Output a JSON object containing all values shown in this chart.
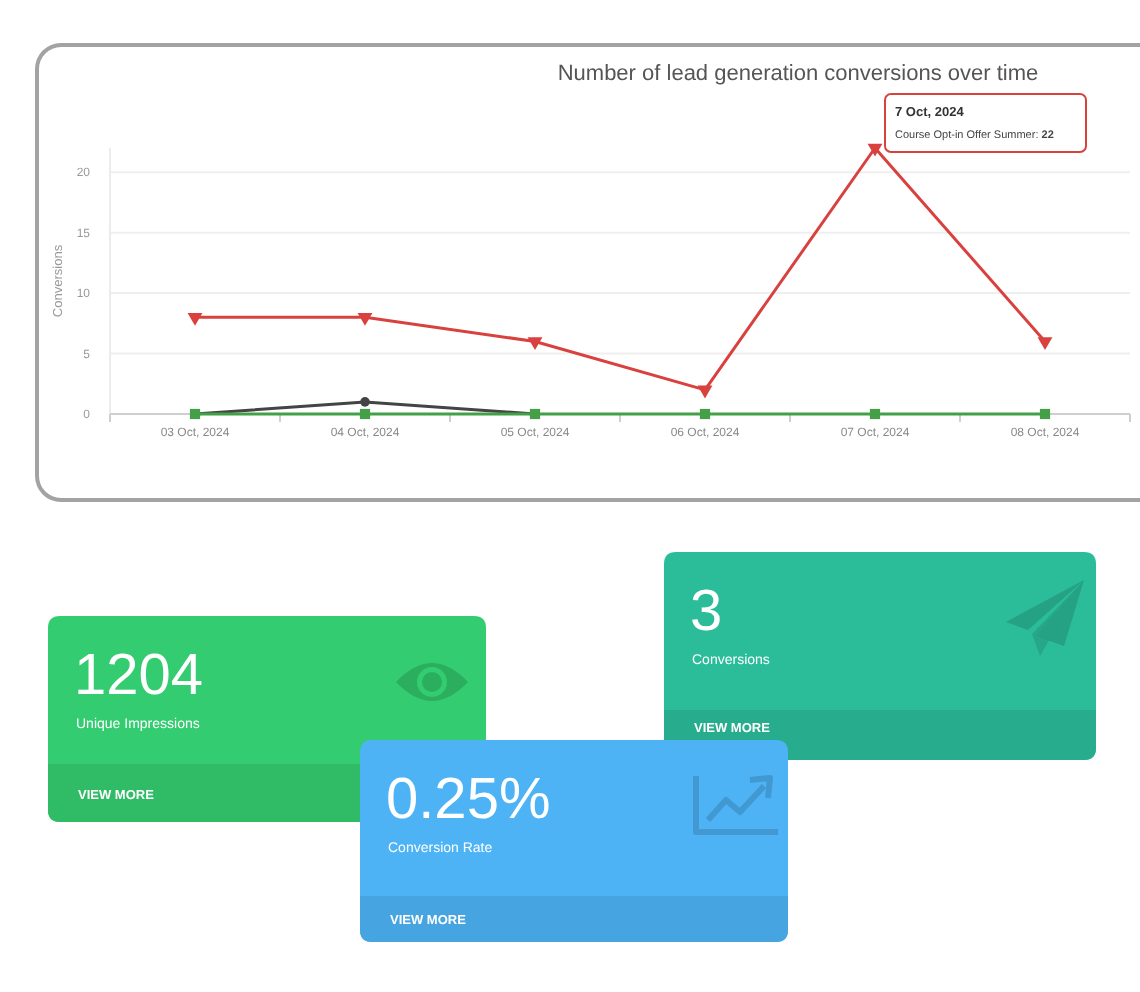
{
  "chart_data": [
    {
      "type": "line",
      "title": "Number of lead generation conversions over time",
      "ylabel": "Conversions",
      "categories": [
        "03 Oct, 2024",
        "04 Oct, 2024",
        "05 Oct, 2024",
        "06 Oct, 2024",
        "07 Oct, 2024",
        "08 Oct, 2024"
      ],
      "series": [
        {
          "color": "#d9413f",
          "marker": "triangle",
          "values": [
            8,
            8,
            6,
            2,
            22,
            6
          ]
        },
        {
          "color": "#444444",
          "marker": "circle",
          "values": [
            0,
            1,
            0,
            null,
            null,
            null
          ]
        },
        {
          "color": "#43a047",
          "marker": "square",
          "values": [
            0,
            0,
            0,
            0,
            0,
            0
          ]
        }
      ],
      "ylim": [
        0,
        22
      ],
      "yticks": [
        0,
        5,
        10,
        15,
        20
      ],
      "grid": "y",
      "annotations": [
        {
          "text": "7 Oct, 2024\nCourse Opt-in Offer Summer: 22",
          "x": "07 Oct, 2024",
          "y": 22
        }
      ]
    },
    {
      "type": "other",
      "title": "1204",
      "subtitle": "Unique Impressions",
      "color": "#34cc70",
      "annotations": [
        "VIEW MORE"
      ]
    },
    {
      "type": "other",
      "title": "3",
      "subtitle": "Conversions",
      "color": "#2bbd9a",
      "annotations": [
        "VIEW MORE"
      ]
    },
    {
      "type": "other",
      "title": "0.25%",
      "subtitle": "Conversion Rate",
      "color": "#4db3f5",
      "annotations": [
        "VIEW MORE"
      ]
    }
  ]
}
